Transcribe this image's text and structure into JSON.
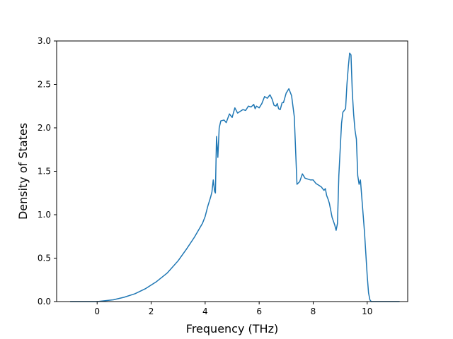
{
  "chart_data": {
    "type": "line",
    "title": "",
    "xlabel": "Frequency (THz)",
    "ylabel": "Density of States",
    "xlim": [
      -1.5,
      11.5
    ],
    "ylim": [
      0,
      3.0
    ],
    "xticks": [
      0,
      2,
      4,
      6,
      8,
      10
    ],
    "yticks": [
      0.0,
      0.5,
      1.0,
      1.5,
      2.0,
      2.5,
      3.0
    ],
    "xtick_labels": [
      "0",
      "2",
      "4",
      "6",
      "8",
      "10"
    ],
    "ytick_labels": [
      "0.0",
      "0.5",
      "1.0",
      "1.5",
      "2.0",
      "2.5",
      "3.0"
    ],
    "grid": false,
    "legend": "none",
    "line_color": "#1f77b4",
    "series": [
      {
        "x": [
          -1.0,
          -0.5,
          0.0,
          0.3,
          0.6,
          1.0,
          1.4,
          1.8,
          2.2,
          2.6,
          3.0,
          3.3,
          3.6,
          3.9,
          4.0,
          4.1,
          4.2,
          4.25,
          4.3,
          4.35,
          4.38,
          4.42,
          4.47,
          4.52,
          4.58,
          4.7,
          4.78,
          4.85,
          4.9,
          5.0,
          5.1,
          5.2,
          5.3,
          5.4,
          5.5,
          5.6,
          5.7,
          5.8,
          5.85,
          5.9,
          6.0,
          6.1,
          6.2,
          6.3,
          6.4,
          6.48,
          6.55,
          6.62,
          6.67,
          6.72,
          6.78,
          6.85,
          6.9,
          7.0,
          7.1,
          7.2,
          7.3,
          7.4,
          7.5,
          7.6,
          7.7,
          7.8,
          7.9,
          8.0,
          8.1,
          8.2,
          8.3,
          8.4,
          8.45,
          8.5,
          8.55,
          8.6,
          8.65,
          8.7,
          8.8,
          8.85,
          8.9,
          8.95,
          9.0,
          9.05,
          9.1,
          9.2,
          9.25,
          9.3,
          9.35,
          9.4,
          9.45,
          9.5,
          9.55,
          9.6,
          9.65,
          9.7,
          9.75,
          9.8,
          9.85,
          9.9,
          9.95,
          10.0,
          10.05,
          10.1,
          10.15,
          10.2,
          10.3,
          10.6,
          11.2
        ],
        "y": [
          0.0,
          0.0,
          0.0,
          0.01,
          0.02,
          0.05,
          0.09,
          0.15,
          0.23,
          0.33,
          0.47,
          0.6,
          0.74,
          0.9,
          0.98,
          1.1,
          1.2,
          1.26,
          1.4,
          1.27,
          1.25,
          1.9,
          1.66,
          2.0,
          2.08,
          2.09,
          2.06,
          2.12,
          2.16,
          2.12,
          2.23,
          2.17,
          2.19,
          2.21,
          2.2,
          2.25,
          2.24,
          2.27,
          2.22,
          2.25,
          2.23,
          2.28,
          2.36,
          2.34,
          2.38,
          2.33,
          2.26,
          2.25,
          2.28,
          2.22,
          2.21,
          2.29,
          2.29,
          2.4,
          2.45,
          2.37,
          2.13,
          1.35,
          1.38,
          1.47,
          1.42,
          1.41,
          1.4,
          1.4,
          1.36,
          1.34,
          1.32,
          1.28,
          1.3,
          1.22,
          1.18,
          1.13,
          1.05,
          0.97,
          0.88,
          0.82,
          0.9,
          1.45,
          1.75,
          2.05,
          2.18,
          2.22,
          2.5,
          2.7,
          2.86,
          2.84,
          2.4,
          2.15,
          1.97,
          1.87,
          1.45,
          1.35,
          1.4,
          1.2,
          1.0,
          0.8,
          0.55,
          0.3,
          0.1,
          0.02,
          0.0,
          0.0,
          0.0,
          0.0,
          0.0
        ]
      }
    ]
  }
}
